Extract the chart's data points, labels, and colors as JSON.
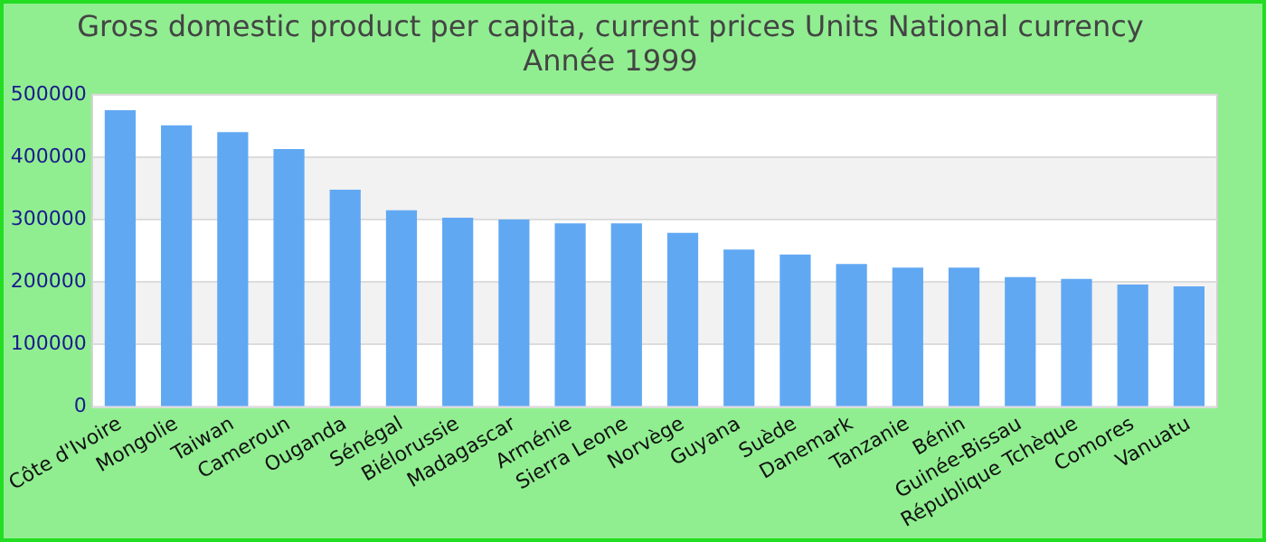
{
  "chart_data": {
    "type": "bar",
    "title": "Gross domestic product per capita, current prices Units National currency",
    "subtitle": "Année 1999",
    "categories": [
      "Côte d'Ivoire",
      "Mongolie",
      "Taiwan",
      "Cameroun",
      "Ouganda",
      "Sénégal",
      "Biélorussie",
      "Madagascar",
      "Arménie",
      "Sierra Leone",
      "Norvège",
      "Guyana",
      "Suède",
      "Danemark",
      "Tanzanie",
      "Bénin",
      "Guinée-Bissau",
      "République Tchèque",
      "Comores",
      "Vanuatu"
    ],
    "values": [
      475000,
      451000,
      440000,
      413000,
      348000,
      315000,
      303000,
      300000,
      294000,
      294000,
      279000,
      252000,
      244000,
      229000,
      223000,
      223000,
      208000,
      205000,
      196000,
      193000
    ],
    "color": "#61a8f3",
    "ylim": [
      0,
      500000
    ],
    "yticks": [
      0,
      100000,
      200000,
      300000,
      400000,
      500000
    ],
    "grid": "y",
    "legend": false
  }
}
